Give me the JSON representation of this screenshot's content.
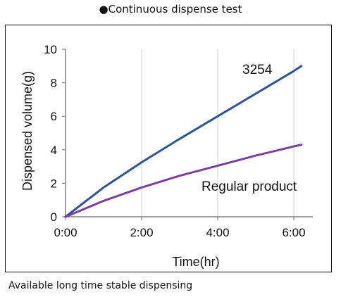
{
  "title": "●Continuous dispense test",
  "caption": "Available long time stable dispensing",
  "chart_data": {
    "type": "line",
    "title": "●Continuous dispense test",
    "xlabel": "Time(hr)",
    "ylabel": "Dispensed volume(g)",
    "x_unit": "hours",
    "xlim": [
      0,
      6.5
    ],
    "ylim": [
      0,
      10
    ],
    "xticks": [
      0,
      2,
      4,
      6
    ],
    "xtick_labels": [
      "0:00",
      "2:00",
      "4:00",
      "6:00"
    ],
    "yticks": [
      0,
      2,
      4,
      6,
      8,
      10
    ],
    "ytick_labels": [
      "0",
      "2",
      "4",
      "6",
      "8",
      "10"
    ],
    "grid": "vertical",
    "series": [
      {
        "name": "3254",
        "color": "#2e5597",
        "x": [
          0,
          1,
          2,
          3,
          4,
          5,
          6,
          6.2
        ],
        "y": [
          0,
          1.75,
          3.25,
          4.65,
          6.0,
          7.35,
          8.7,
          9.0
        ]
      },
      {
        "name": "Regular product",
        "color": "#7b3fa0",
        "x": [
          0,
          1,
          2,
          3,
          4,
          5,
          6,
          6.2
        ],
        "y": [
          0,
          0.95,
          1.75,
          2.45,
          3.05,
          3.65,
          4.2,
          4.3
        ]
      }
    ]
  }
}
